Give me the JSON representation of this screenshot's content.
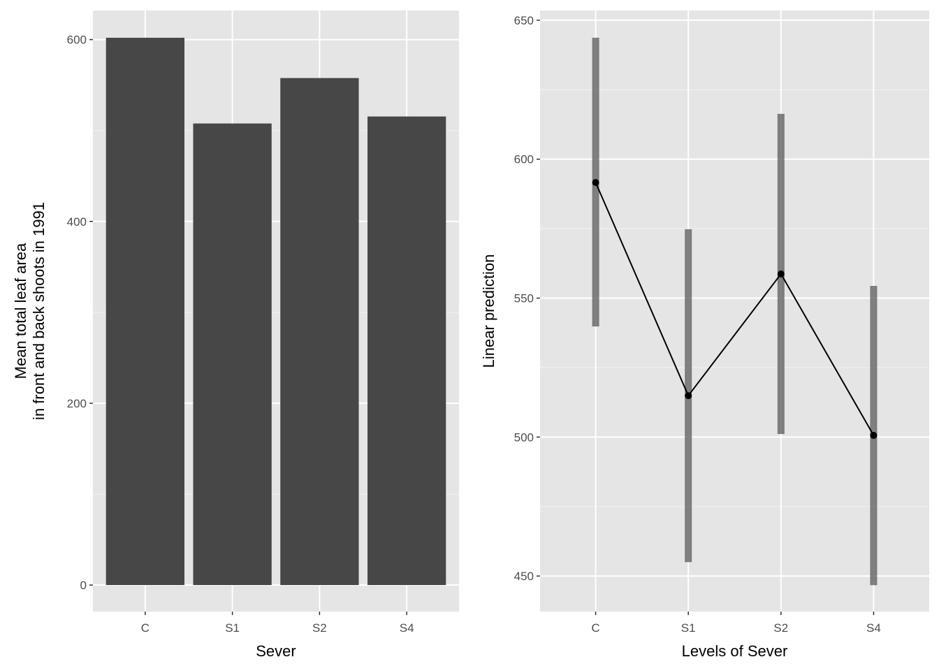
{
  "chart_data": [
    {
      "type": "bar",
      "categories": [
        "C",
        "S1",
        "S2",
        "S4"
      ],
      "values": [
        602,
        507.7,
        557.7,
        515.4
      ],
      "xlabel": "Sever",
      "ylabel": [
        "Mean total leaf area",
        "in front and back shoots in 1991"
      ],
      "ylim": [
        -29.2,
        632
      ],
      "yticks": [
        0,
        200,
        400,
        600
      ],
      "bar_color": "#474747",
      "grid": true
    },
    {
      "type": "line",
      "categories": [
        "C",
        "S1",
        "S2",
        "S4"
      ],
      "values": [
        591.6,
        514.9,
        558.7,
        500.6
      ],
      "ci_lower": [
        539.8,
        455.0,
        501.1,
        446.7
      ],
      "ci_upper": [
        643.7,
        574.8,
        616.3,
        554.4
      ],
      "xlabel": "Levels of Sever",
      "ylabel": "Linear prediction",
      "ylim": [
        437.2,
        653.5
      ],
      "yticks": [
        450,
        500,
        550,
        600,
        650
      ],
      "grid": true
    }
  ]
}
